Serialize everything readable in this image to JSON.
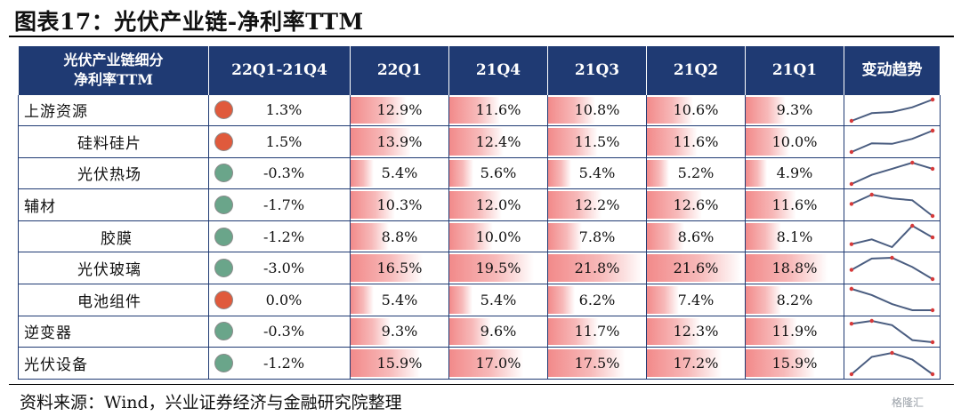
{
  "title": "图表17：光伏产业链-净利率TTM",
  "source": "资料来源：Wind，兴业证券经济与金融研究院整理",
  "watermark": "格隆汇",
  "colors": {
    "header_bg": "#1f3a73",
    "dot_up": "#e05a3c",
    "dot_down": "#6aa58a",
    "bar": "#f28a8a",
    "trend_line": "#4a5d80",
    "trend_point": "#d63a3a"
  },
  "chart_data": {
    "type": "table",
    "columns": [
      "光伏产业链细分\n净利率TTM",
      "22Q1-21Q4",
      "22Q1",
      "21Q4",
      "21Q3",
      "21Q2",
      "21Q1",
      "变动趋势"
    ],
    "header": {
      "name_line1": "光伏产业链细分",
      "name_line2": "净利率TTM",
      "change": "22Q1-21Q4",
      "q": [
        "22Q1",
        "21Q4",
        "21Q3",
        "21Q2",
        "21Q1"
      ],
      "trend": "变动趋势"
    },
    "bar_max": 22.5,
    "rows": [
      {
        "name": "上游资源",
        "level": 0,
        "change": "1.3%",
        "direction": "up",
        "values": [
          "12.9%",
          "11.6%",
          "10.8%",
          "10.6%",
          "9.3%"
        ],
        "nums": [
          12.9,
          11.6,
          10.8,
          10.6,
          9.3
        ]
      },
      {
        "name": "硅料硅片",
        "level": 1,
        "change": "1.5%",
        "direction": "up",
        "values": [
          "13.9%",
          "12.4%",
          "11.5%",
          "11.6%",
          "10.0%"
        ],
        "nums": [
          13.9,
          12.4,
          11.5,
          11.6,
          10.0
        ]
      },
      {
        "name": "光伏热场",
        "level": 1,
        "change": "-0.3%",
        "direction": "down",
        "values": [
          "5.4%",
          "5.6%",
          "5.4%",
          "5.2%",
          "4.9%"
        ],
        "nums": [
          5.4,
          5.6,
          5.4,
          5.2,
          4.9
        ]
      },
      {
        "name": "辅材",
        "level": 0,
        "change": "-1.7%",
        "direction": "down",
        "values": [
          "10.3%",
          "12.0%",
          "12.2%",
          "12.6%",
          "11.6%"
        ],
        "nums": [
          10.3,
          12.0,
          12.2,
          12.6,
          11.6
        ]
      },
      {
        "name": "胶膜",
        "level": 2,
        "change": "-1.2%",
        "direction": "down",
        "values": [
          "8.8%",
          "10.0%",
          "7.8%",
          "8.6%",
          "8.1%"
        ],
        "nums": [
          8.8,
          10.0,
          7.8,
          8.6,
          8.1
        ]
      },
      {
        "name": "光伏玻璃",
        "level": 1,
        "change": "-3.0%",
        "direction": "down",
        "values": [
          "16.5%",
          "19.5%",
          "21.8%",
          "21.6%",
          "18.8%"
        ],
        "nums": [
          16.5,
          19.5,
          21.8,
          21.6,
          18.8
        ]
      },
      {
        "name": "电池组件",
        "level": 1,
        "change": "0.0%",
        "direction": "up",
        "values": [
          "5.4%",
          "5.4%",
          "6.2%",
          "7.4%",
          "8.2%"
        ],
        "nums": [
          5.4,
          5.4,
          6.2,
          7.4,
          8.2
        ]
      },
      {
        "name": "逆变器",
        "level": 0,
        "change": "-0.3%",
        "direction": "down",
        "values": [
          "9.3%",
          "9.6%",
          "11.7%",
          "12.3%",
          "11.9%"
        ],
        "nums": [
          9.3,
          9.6,
          11.7,
          12.3,
          11.9
        ]
      },
      {
        "name": "光伏设备",
        "level": 0,
        "change": "-1.2%",
        "direction": "down",
        "values": [
          "15.9%",
          "17.0%",
          "17.5%",
          "17.2%",
          "15.9%"
        ],
        "nums": [
          15.9,
          17.0,
          17.5,
          17.2,
          15.9
        ]
      }
    ]
  }
}
